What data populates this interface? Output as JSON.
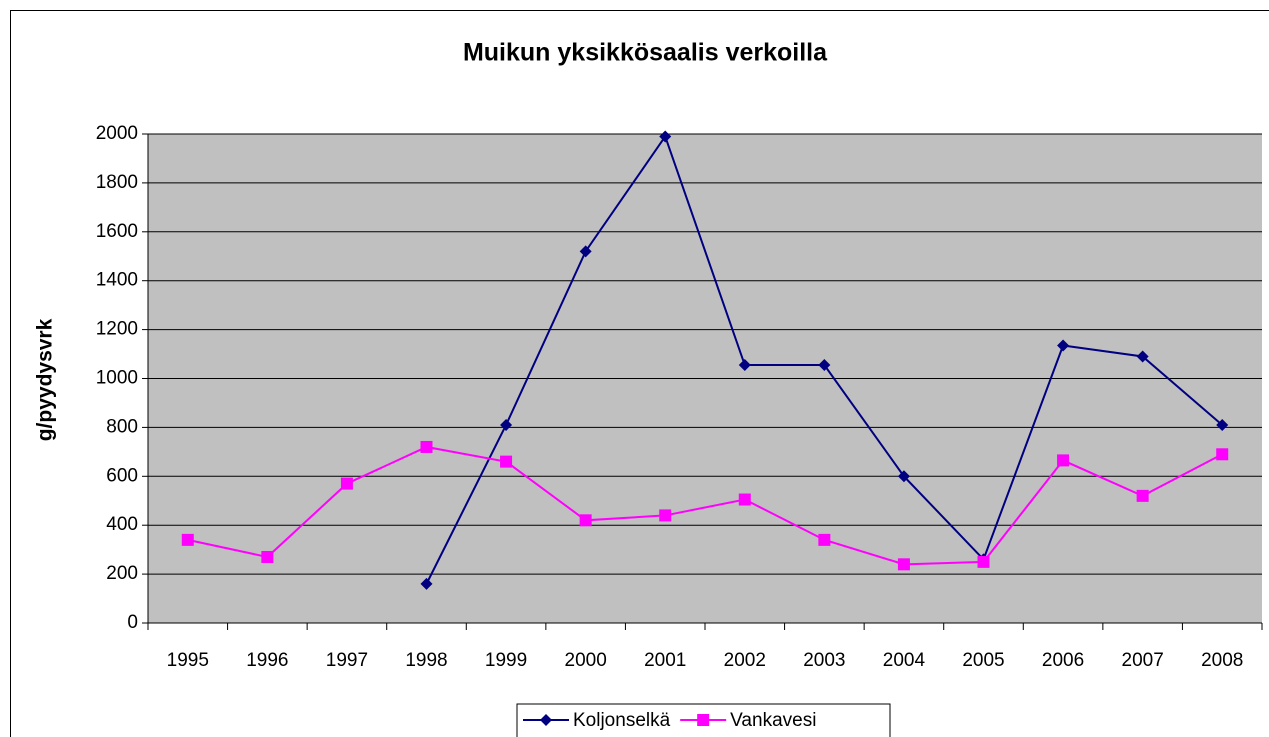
{
  "chart_data": {
    "type": "line",
    "title": "Muikun yksikkösaalis verkoilla",
    "y_label": "g/pyydysvrk",
    "categories": [
      "1995",
      "1996",
      "1997",
      "1998",
      "1999",
      "2000",
      "2001",
      "2002",
      "2003",
      "2004",
      "2005",
      "2006",
      "2007",
      "2008"
    ],
    "series": [
      {
        "name": "Koljonselkä",
        "color": "#000080",
        "marker": "diamond",
        "values": [
          null,
          null,
          null,
          160,
          810,
          1520,
          1990,
          1055,
          1055,
          600,
          260,
          1135,
          1090,
          810
        ]
      },
      {
        "name": "Vankavesi",
        "color": "#ff00ff",
        "marker": "square",
        "values": [
          340,
          270,
          570,
          720,
          660,
          420,
          440,
          505,
          340,
          240,
          250,
          665,
          520,
          690
        ]
      }
    ],
    "ylim": [
      0,
      2000
    ],
    "yticks": [
      0,
      200,
      400,
      600,
      800,
      1000,
      1200,
      1400,
      1600,
      1800,
      2000
    ],
    "grid": true,
    "legend": "bottom"
  }
}
